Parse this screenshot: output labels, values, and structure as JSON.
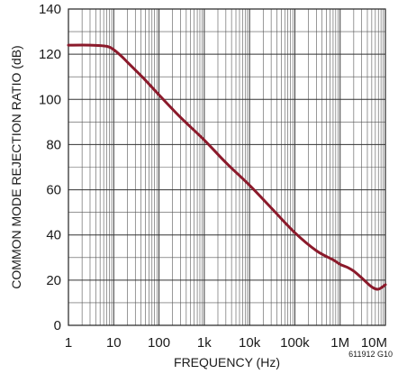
{
  "chart_data": {
    "type": "line",
    "title": "",
    "xlabel": "FREQUENCY (Hz)",
    "ylabel": "COMMON MODE REJECTION RATIO (dB)",
    "x_scale": "log",
    "xlim": [
      1,
      10000000
    ],
    "ylim": [
      0,
      140
    ],
    "x_tick_labels": [
      "1",
      "10",
      "100",
      "1k",
      "10k",
      "100k",
      "1M",
      "10M"
    ],
    "y_tick_labels": [
      "0",
      "20",
      "40",
      "60",
      "80",
      "100",
      "120",
      "140"
    ],
    "grid": true,
    "line_color": "#8b1a2b",
    "footnote": "611912 G10",
    "series": [
      {
        "x": [
          1,
          3,
          7,
          10,
          15,
          20,
          30,
          50,
          100,
          300,
          1000,
          3000,
          10000,
          30000,
          100000,
          300000,
          700000,
          1000000,
          1500000,
          2000000,
          3000000,
          5000000,
          7000000,
          10000000
        ],
        "values": [
          124,
          124,
          123.5,
          122,
          119,
          116.5,
          113,
          108.5,
          102,
          92,
          82,
          72,
          62,
          52,
          41,
          33,
          29,
          27,
          25.5,
          24,
          21,
          17,
          16,
          18
        ]
      }
    ]
  }
}
